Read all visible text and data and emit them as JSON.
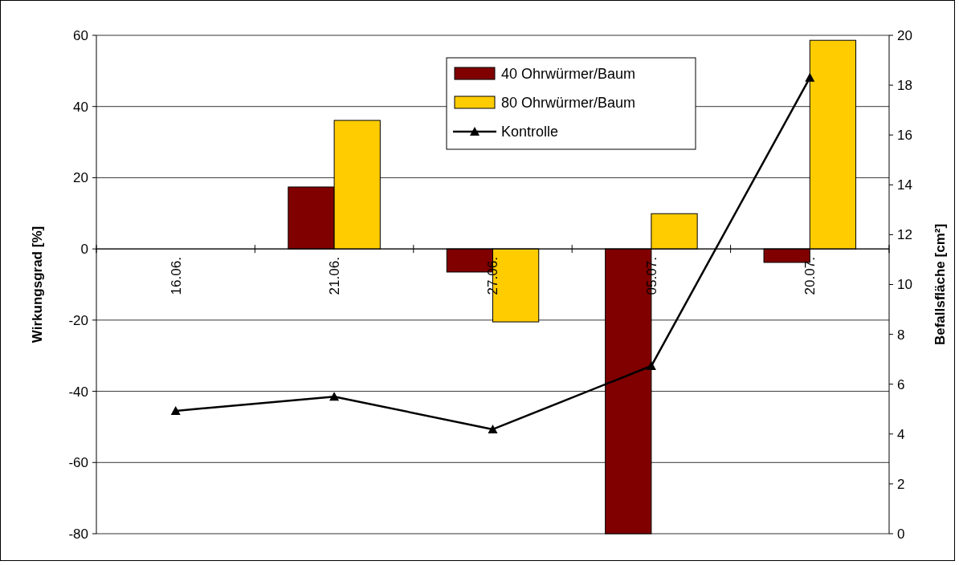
{
  "chart_data": {
    "type": "bar",
    "categories": [
      "16.06.",
      "21.06.",
      "27.06.",
      "05.07.",
      "20.07."
    ],
    "ylabel": "Wirkungsgrad [%]",
    "y2label": "Befallsfläche [cm²]",
    "ylim": [
      -80,
      60
    ],
    "yticks": [
      -80,
      -60,
      -40,
      -20,
      0,
      20,
      40,
      60
    ],
    "y2lim": [
      0,
      20
    ],
    "y2ticks": [
      0,
      2,
      4,
      6,
      8,
      10,
      12,
      14,
      16,
      18,
      20
    ],
    "grid": "y",
    "legend": "top",
    "series": [
      {
        "name": "40 Ohrwürmer/Baum",
        "color": "#800000",
        "values": [
          null,
          17.4,
          -6.5,
          -80,
          -3.8
        ]
      },
      {
        "name": "80 Ohrwürmer/Baum",
        "color": "#ffcc00",
        "values": [
          null,
          36.1,
          -20.5,
          9.9,
          58.6
        ]
      },
      {
        "name": "Kontrolle",
        "type": "line",
        "axis": "y2",
        "color": "#000000",
        "marker": "triangle",
        "values": [
          4.93,
          5.5,
          4.19,
          6.73,
          18.3
        ]
      }
    ]
  }
}
